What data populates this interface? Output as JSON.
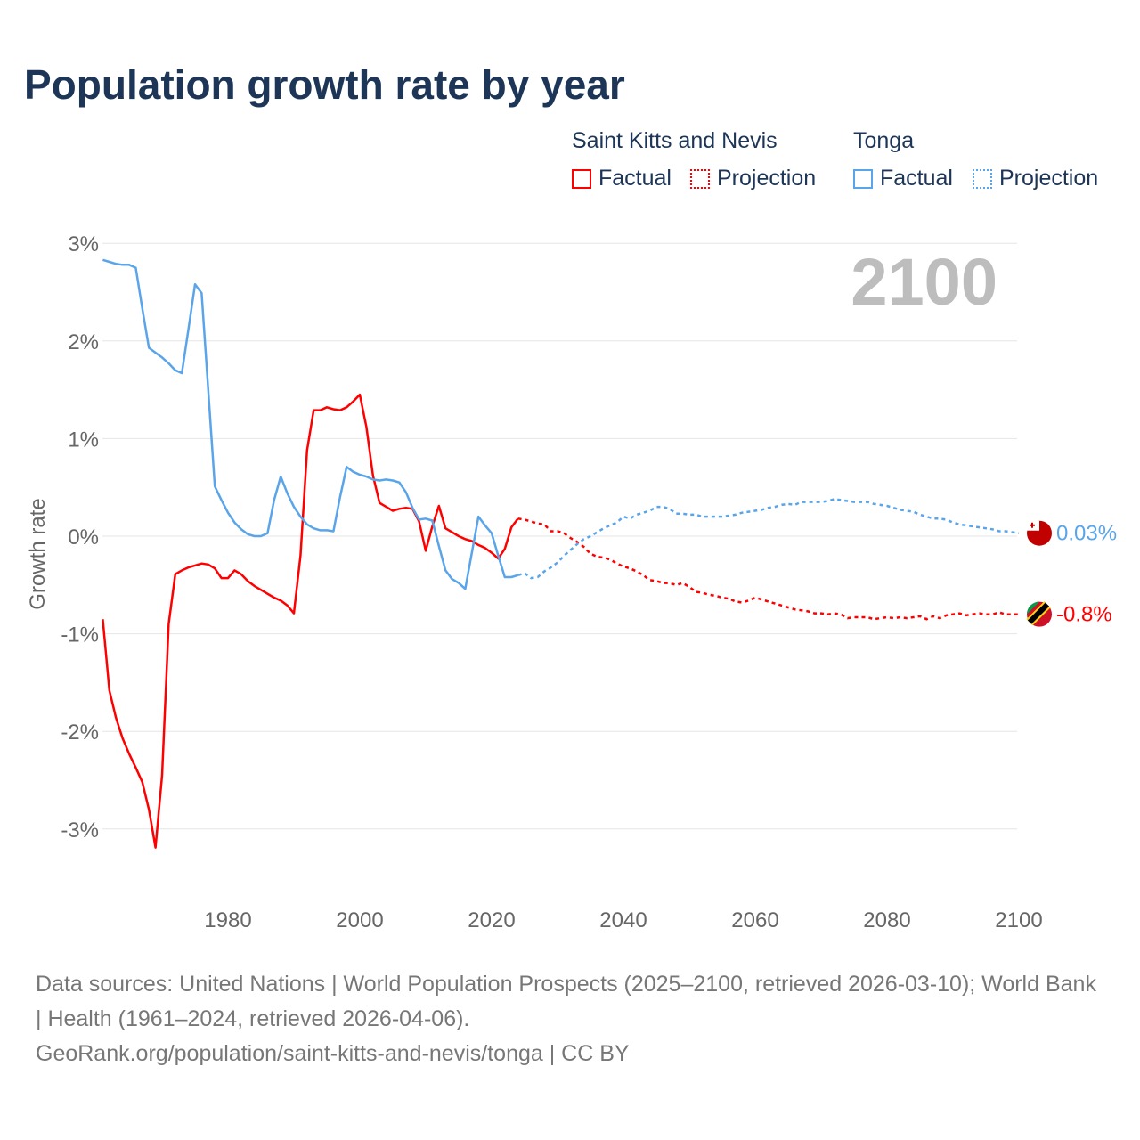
{
  "chart_data": {
    "type": "line",
    "title": "Population growth rate by year",
    "xlabel": "",
    "ylabel": "Growth rate",
    "xlim": [
      1961,
      2100
    ],
    "ylim": [
      -3.5,
      3.2
    ],
    "x_ticks": [
      1980,
      2000,
      2020,
      2040,
      2060,
      2080,
      2100
    ],
    "x_tick_labels": [
      "1980",
      "2000",
      "2020",
      "2040",
      "2060",
      "2080",
      "2100"
    ],
    "y_ticks": [
      3,
      2,
      1,
      0,
      -1,
      -2,
      -3
    ],
    "y_tick_labels": [
      "3%",
      "2%",
      "1%",
      "0%",
      "-1%",
      "-2%",
      "-3%"
    ],
    "grid": true,
    "year_watermark": "2100",
    "legend": {
      "placement": "top-right",
      "groups": [
        {
          "name": "Saint Kitts and Nevis",
          "factual": "Factual",
          "projection": "Projection"
        },
        {
          "name": "Tonga",
          "factual": "Factual",
          "projection": "Projection"
        }
      ]
    },
    "series": [
      {
        "name": "Saint Kitts and Nevis",
        "color": "#ff0000",
        "end_label": "-0.8%",
        "factual_start": 1961,
        "factual": [
          -0.85,
          -1.58,
          -1.86,
          -2.07,
          -2.23,
          -2.37,
          -2.52,
          -2.8,
          -3.19,
          -2.45,
          -0.9,
          -0.39,
          -0.35,
          -0.32,
          -0.3,
          -0.28,
          -0.29,
          -0.33,
          -0.43,
          -0.43,
          -0.35,
          -0.39,
          -0.46,
          -0.51,
          -0.55,
          -0.59,
          -0.63,
          -0.66,
          -0.71,
          -0.79,
          -0.2,
          0.88,
          1.29,
          1.29,
          1.32,
          1.3,
          1.29,
          1.32,
          1.38,
          1.45,
          1.12,
          0.62,
          0.34,
          0.3,
          0.26,
          0.28,
          0.29,
          0.28,
          0.15,
          -0.15,
          0.1,
          0.31,
          0.08,
          0.04,
          0.0,
          -0.03,
          -0.05,
          -0.09,
          -0.12,
          -0.17,
          -0.23,
          -0.13,
          0.09,
          0.18
        ],
        "projection_start": 2025,
        "projection": [
          0.17,
          0.15,
          0.13,
          0.12,
          0.05,
          0.05,
          0.03,
          -0.02,
          -0.06,
          -0.11,
          -0.18,
          -0.21,
          -0.22,
          -0.24,
          -0.28,
          -0.31,
          -0.33,
          -0.36,
          -0.4,
          -0.45,
          -0.46,
          -0.48,
          -0.48,
          -0.5,
          -0.48,
          -0.52,
          -0.57,
          -0.58,
          -0.6,
          -0.61,
          -0.63,
          -0.64,
          -0.67,
          -0.68,
          -0.66,
          -0.63,
          -0.65,
          -0.67,
          -0.69,
          -0.71,
          -0.73,
          -0.75,
          -0.76,
          -0.77,
          -0.79,
          -0.79,
          -0.8,
          -0.79,
          -0.8,
          -0.84,
          -0.83,
          -0.83,
          -0.83,
          -0.85,
          -0.84,
          -0.83,
          -0.84,
          -0.83,
          -0.84,
          -0.83,
          -0.82,
          -0.85,
          -0.82,
          -0.84,
          -0.81,
          -0.8,
          -0.79,
          -0.81,
          -0.8,
          -0.79,
          -0.8,
          -0.8,
          -0.78,
          -0.8,
          -0.8,
          -0.8
        ]
      },
      {
        "name": "Tonga",
        "color": "#5aa5ea",
        "end_label": "0.03%",
        "factual_start": 1961,
        "factual": [
          2.83,
          2.81,
          2.79,
          2.78,
          2.78,
          2.75,
          2.33,
          1.93,
          1.88,
          1.83,
          1.77,
          1.7,
          1.67,
          2.12,
          2.58,
          2.49,
          1.5,
          0.51,
          0.37,
          0.24,
          0.14,
          0.07,
          0.02,
          0.0,
          0.0,
          0.03,
          0.37,
          0.61,
          0.44,
          0.3,
          0.2,
          0.12,
          0.08,
          0.06,
          0.06,
          0.05,
          0.4,
          0.71,
          0.66,
          0.63,
          0.61,
          0.58,
          0.57,
          0.58,
          0.57,
          0.55,
          0.45,
          0.29,
          0.17,
          0.18,
          0.16,
          -0.1,
          -0.35,
          -0.44,
          -0.48,
          -0.54,
          -0.17,
          0.2,
          0.11,
          0.03,
          -0.2,
          -0.42,
          -0.42,
          -0.4
        ],
        "projection_start": 2025,
        "projection": [
          -0.38,
          -0.43,
          -0.42,
          -0.36,
          -0.32,
          -0.27,
          -0.2,
          -0.14,
          -0.08,
          -0.03,
          0.0,
          0.04,
          0.08,
          0.11,
          0.14,
          0.2,
          0.18,
          0.22,
          0.24,
          0.26,
          0.3,
          0.3,
          0.28,
          0.23,
          0.23,
          0.22,
          0.22,
          0.2,
          0.2,
          0.2,
          0.2,
          0.21,
          0.22,
          0.24,
          0.25,
          0.26,
          0.27,
          0.29,
          0.3,
          0.32,
          0.33,
          0.32,
          0.35,
          0.35,
          0.35,
          0.35,
          0.36,
          0.38,
          0.37,
          0.36,
          0.35,
          0.35,
          0.35,
          0.33,
          0.32,
          0.31,
          0.29,
          0.27,
          0.26,
          0.25,
          0.22,
          0.2,
          0.18,
          0.18,
          0.17,
          0.14,
          0.12,
          0.11,
          0.1,
          0.09,
          0.08,
          0.07,
          0.05,
          0.05,
          0.04,
          0.03
        ]
      }
    ]
  },
  "footer": {
    "sources": "Data sources: United Nations | World Population Prospects (2025–2100, retrieved 2026-03-10); World Bank | Health (1961–2024, retrieved 2026-04-06).",
    "link": "GeoRank.org/population/saint-kitts-and-nevis/tonga | CC BY"
  }
}
